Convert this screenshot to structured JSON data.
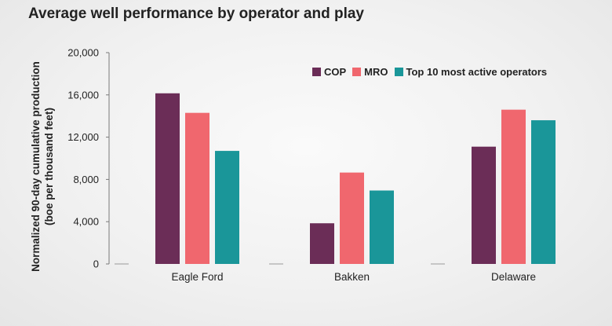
{
  "chart_data": {
    "type": "bar",
    "title": "Average well performance by operator and play",
    "ylabel_lines": [
      "Normalized 90-day cumulative production",
      "(boe per thousand feet)"
    ],
    "xlabel": "",
    "categories": [
      "Eagle Ford",
      "Bakken",
      "Delaware"
    ],
    "series": [
      {
        "name": "COP",
        "color": "#6b2d57",
        "values": [
          16150,
          3850,
          11100
        ]
      },
      {
        "name": "MRO",
        "color": "#f0676e",
        "values": [
          14300,
          8650,
          14600
        ]
      },
      {
        "name": "Top 10 most active operators",
        "color": "#1a9699",
        "values": [
          10700,
          6950,
          13600
        ]
      }
    ],
    "ylim": [
      0,
      20000
    ],
    "yticks": [
      0,
      4000,
      8000,
      12000,
      16000,
      20000
    ],
    "ytick_labels": [
      "0",
      "4,000",
      "8,000",
      "12,000",
      "16,000",
      "20,000"
    ],
    "grid": false,
    "legend_position": "top-right"
  }
}
